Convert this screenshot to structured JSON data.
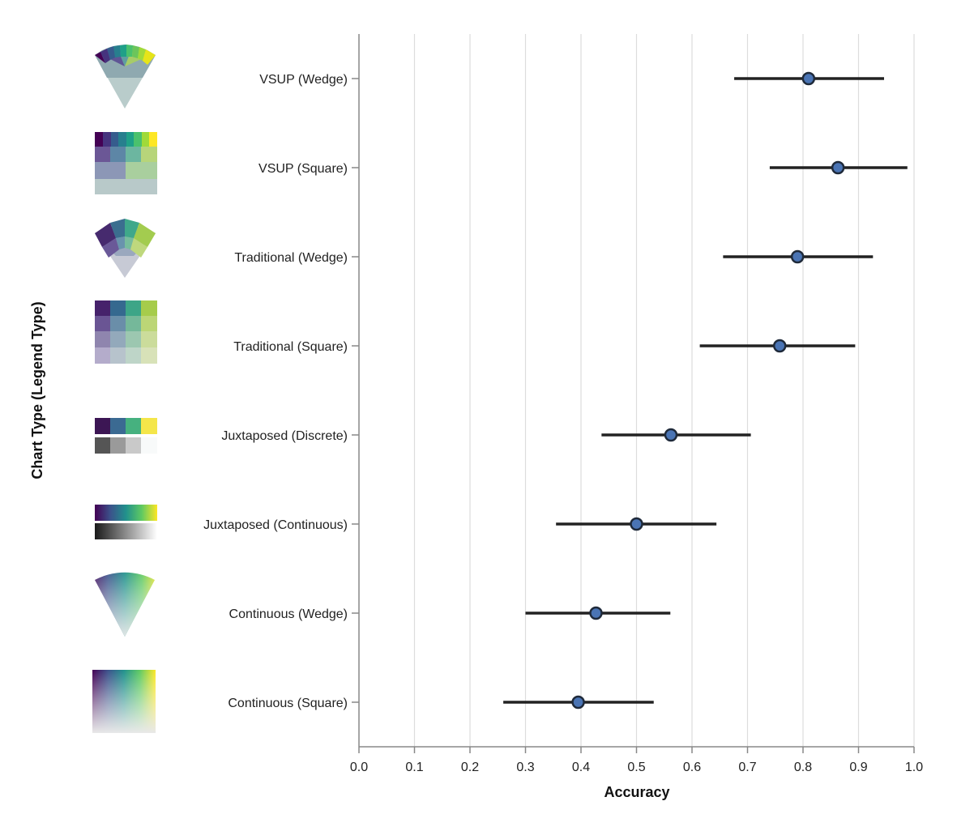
{
  "chart_data": {
    "type": "scatter",
    "xlabel": "Accuracy",
    "ylabel": "Chart Type (Legend Type)",
    "xlim": [
      0.0,
      1.0
    ],
    "xticks": [
      "0.0",
      "0.1",
      "0.2",
      "0.3",
      "0.4",
      "0.5",
      "0.6",
      "0.7",
      "0.8",
      "0.9",
      "1.0"
    ],
    "grid": true,
    "categories": [
      "VSUP (Wedge)",
      "VSUP (Square)",
      "Traditional (Wedge)",
      "Traditional (Square)",
      "Juxtaposed (Discrete)",
      "Juxtaposed (Continuous)",
      "Continuous (Wedge)",
      "Continuous (Square)"
    ],
    "series": [
      {
        "name": "Accuracy",
        "values": [
          0.81,
          0.863,
          0.79,
          0.758,
          0.562,
          0.5,
          0.427,
          0.395
        ],
        "ci_low": [
          0.676,
          0.74,
          0.656,
          0.614,
          0.437,
          0.355,
          0.3,
          0.26
        ],
        "ci_high": [
          0.946,
          0.988,
          0.926,
          0.894,
          0.706,
          0.644,
          0.561,
          0.531
        ]
      }
    ],
    "legend_icons": [
      "vsup-wedge-legend-icon",
      "vsup-square-legend-icon",
      "traditional-wedge-legend-icon",
      "traditional-square-legend-icon",
      "juxtaposed-discrete-legend-icon",
      "juxtaposed-continuous-legend-icon",
      "continuous-wedge-legend-icon",
      "continuous-square-legend-icon"
    ]
  },
  "colors": {
    "point_fill": "#4a74b4",
    "point_stroke": "#1f2a3a",
    "ci": "#222222",
    "viridis": [
      "#440154",
      "#3b528b",
      "#21918c",
      "#5ec962",
      "#fde725"
    ]
  }
}
